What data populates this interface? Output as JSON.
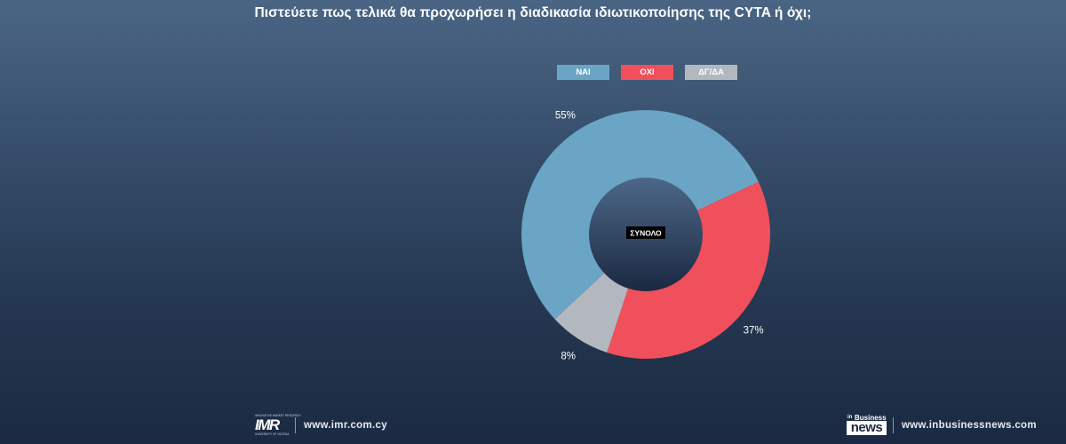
{
  "title": "Πιστεύετε πως τελικά θα προχωρήσει η διαδικασία ιδιωτικοποίησης της CYTA ή όχι;",
  "chart_data": {
    "type": "pie",
    "subtype": "donut",
    "center_label": "ΣΥΝΟΛΟ",
    "legend_position": "top",
    "categories": [
      "ΝΑΙ",
      "ΟΧΙ",
      "ΔΓ/ΔΑ"
    ],
    "values": [
      55,
      37,
      8
    ],
    "value_labels": [
      "55%",
      "37%",
      "8%"
    ],
    "colors": [
      "#6aa5c6",
      "#f0505c",
      "#b3b8bf"
    ]
  },
  "footer": {
    "left_logo": {
      "top_text": "INNOVATIVE MARKET RESEARCH",
      "main_text": "IMR",
      "bottom_text": "UNIVERSITY OF NICOSIA"
    },
    "left_site": "www.imr.com.cy",
    "right_logo": {
      "in_text": "in",
      "business_text": "Business",
      "news_text": "news"
    },
    "right_site": "www.inbusinessnews.com"
  }
}
